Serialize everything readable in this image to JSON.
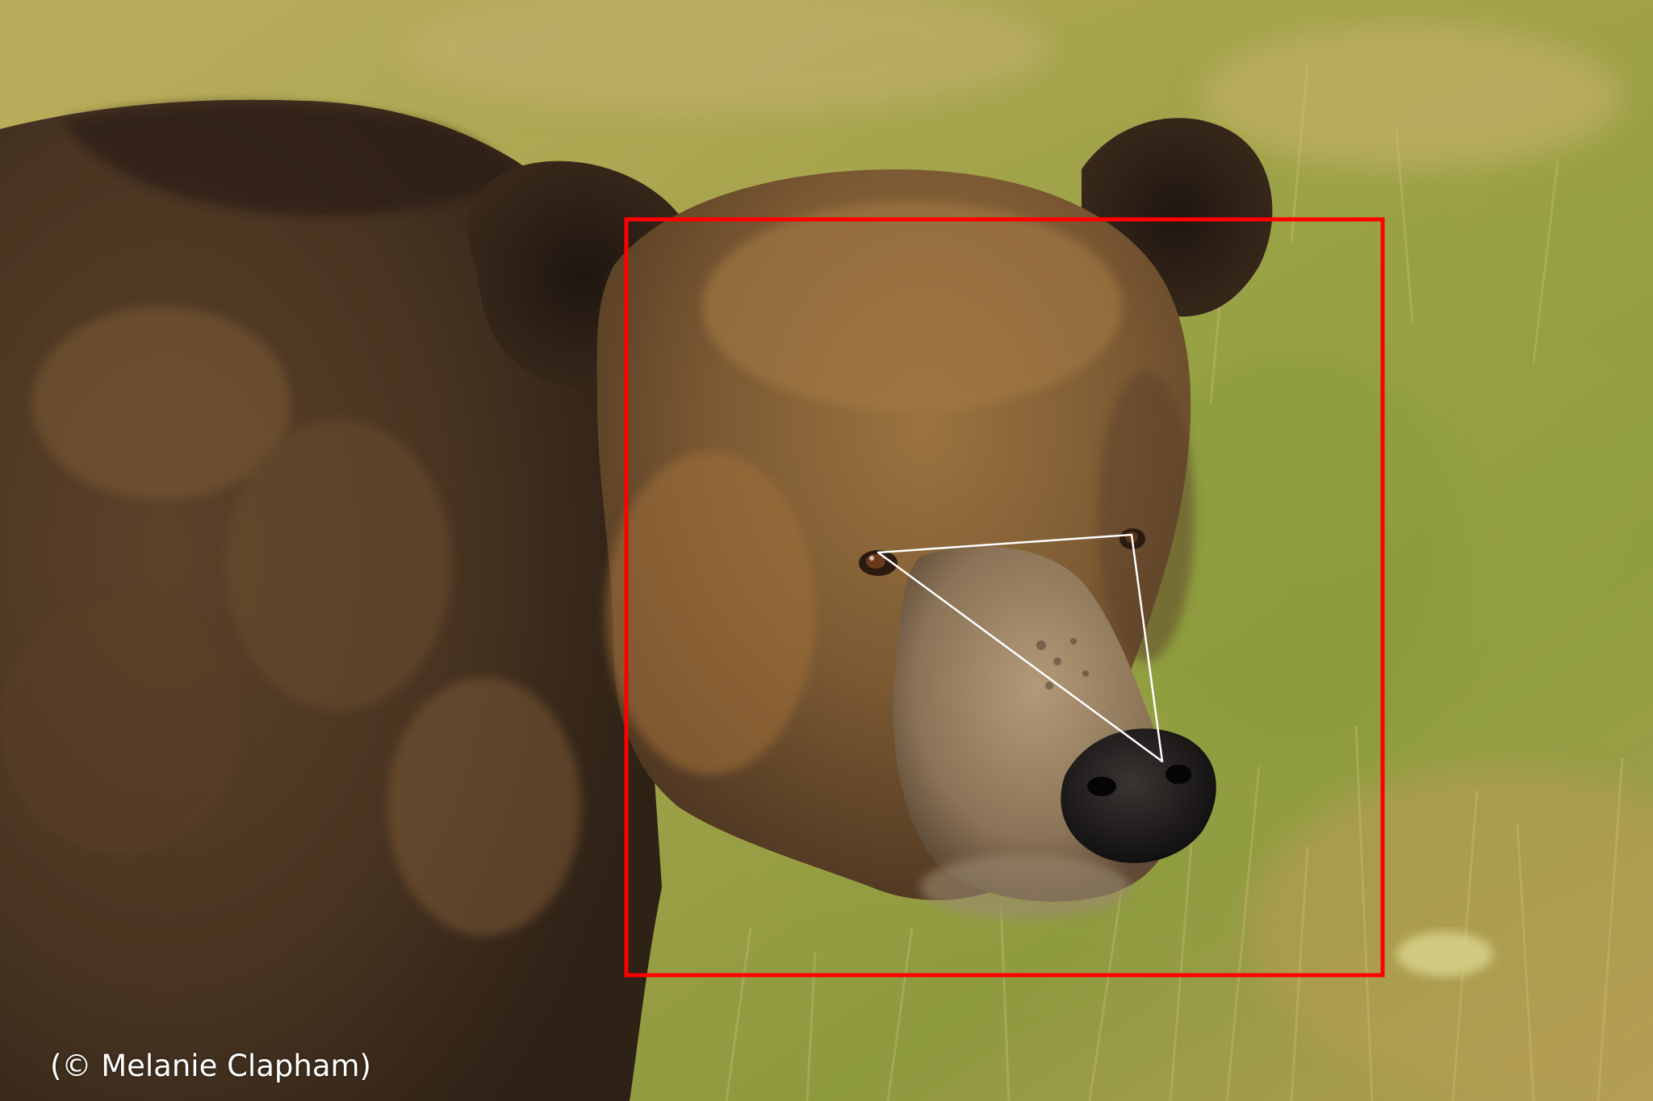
{
  "photo": {
    "subject": "brown-bear-face",
    "credit": "(© Melanie Clapham)",
    "colors": {
      "grass_light": "#b8b35a",
      "grass_green": "#8f9c3e",
      "grass_dry": "#c9b063",
      "fur_dark": "#3a2a1c",
      "fur_mid": "#6e4f30",
      "fur_light": "#a8793f",
      "muzzle": "#a08866",
      "nose": "#1a1716",
      "face_box": "#ff0000",
      "landmark_lines": "#ffffff"
    }
  }
}
